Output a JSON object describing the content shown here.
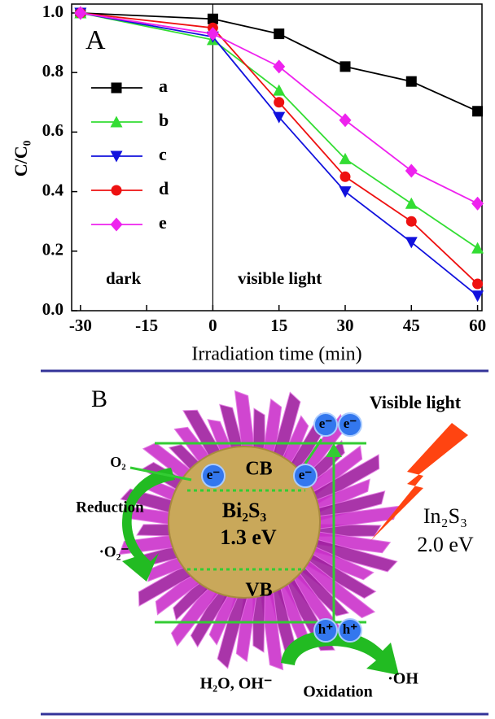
{
  "chart_data": {
    "type": "line",
    "panel_label": "A",
    "xlabel": "Irradiation time (min)",
    "ylabel": "C/C₀",
    "x": [
      -30,
      0,
      15,
      30,
      45,
      60
    ],
    "series": [
      {
        "name": "a",
        "color": "#000000",
        "marker": "square",
        "values": [
          1.0,
          0.98,
          0.93,
          0.82,
          0.77,
          0.67
        ]
      },
      {
        "name": "b",
        "color": "#33dd33",
        "marker": "triangle-up",
        "values": [
          1.0,
          0.91,
          0.74,
          0.51,
          0.36,
          0.21
        ]
      },
      {
        "name": "c",
        "color": "#1111dd",
        "marker": "triangle-down",
        "values": [
          1.0,
          0.92,
          0.65,
          0.4,
          0.23,
          0.05
        ]
      },
      {
        "name": "d",
        "color": "#ee1111",
        "marker": "circle",
        "values": [
          1.0,
          0.95,
          0.7,
          0.45,
          0.3,
          0.09
        ]
      },
      {
        "name": "e",
        "color": "#ee22ee",
        "marker": "diamond",
        "values": [
          1.0,
          0.93,
          0.82,
          0.64,
          0.47,
          0.36
        ]
      }
    ],
    "xlim": [
      -32,
      61
    ],
    "ylim": [
      0,
      1.03
    ],
    "xticks": [
      -30,
      -15,
      0,
      15,
      30,
      45,
      60
    ],
    "yticks": [
      {
        "value": 0,
        "label": "0.0"
      },
      {
        "value": 0.2,
        "label": "0.2"
      },
      {
        "value": 0.4,
        "label": "0.4"
      },
      {
        "value": 0.6,
        "label": "0.6"
      },
      {
        "value": 0.8,
        "label": "0.8"
      },
      {
        "value": 1,
        "label": "1.0"
      }
    ],
    "annotations": [
      "dark",
      "visible light"
    ],
    "legend": "upper left"
  },
  "diagram": {
    "panel_label": "B",
    "light": "Visible light",
    "o2": "O₂",
    "reduction": "Reduction",
    "superoxide": "·O₂⁻",
    "cb": "CB",
    "vb": "VB",
    "bi2s3": "Bi₂S₃",
    "bi2s3_gap": "1.3 eV",
    "in2s3": "In₂S₃",
    "in2s3_gap": "2.0 eV",
    "water": "H₂O, OH⁻",
    "oxidation": "Oxidation",
    "hydroxyl": "·OH",
    "electrons": [
      "e⁻",
      "e⁻",
      "e⁻",
      "e⁻"
    ],
    "holes": [
      "h⁺",
      "h⁺"
    ]
  }
}
